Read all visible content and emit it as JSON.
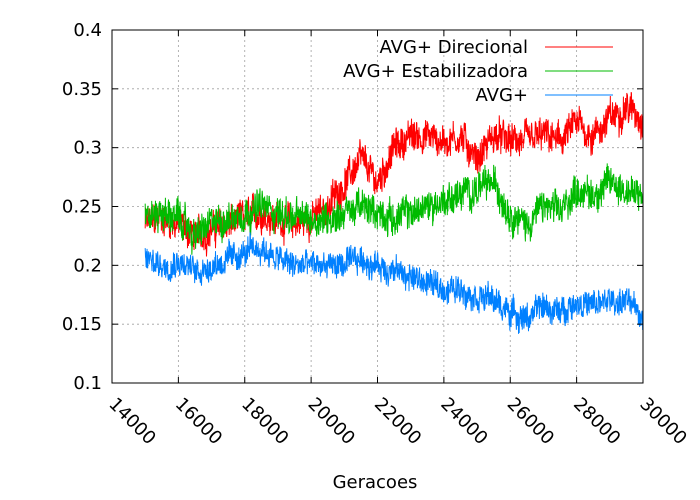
{
  "chart_data": {
    "type": "line",
    "xlabel": "Geracoes",
    "ylabel": "",
    "xlim": [
      14000,
      30000
    ],
    "ylim": [
      0.1,
      0.4
    ],
    "xticks": [
      "14000",
      "16000",
      "18000",
      "20000",
      "22000",
      "24000",
      "26000",
      "28000",
      "30000"
    ],
    "yticks": [
      "0.1",
      "0.15",
      "0.2",
      "0.25",
      "0.3",
      "0.35",
      "0.4"
    ],
    "grid": true,
    "legend_position": "top-right",
    "series": [
      {
        "name": "AVG+ Direcional",
        "color": "#ff0000",
        "noise": 0.012,
        "x": [
          15000,
          15500,
          16000,
          16500,
          17000,
          17500,
          18000,
          18500,
          19000,
          19500,
          20000,
          20500,
          21000,
          21500,
          22000,
          22500,
          23000,
          23500,
          24000,
          24500,
          25000,
          25500,
          26000,
          26500,
          27000,
          27500,
          28000,
          28500,
          29000,
          29500,
          30000
        ],
        "y": [
          0.235,
          0.24,
          0.235,
          0.225,
          0.23,
          0.235,
          0.24,
          0.245,
          0.24,
          0.235,
          0.24,
          0.25,
          0.27,
          0.29,
          0.27,
          0.3,
          0.31,
          0.31,
          0.305,
          0.31,
          0.29,
          0.31,
          0.305,
          0.305,
          0.31,
          0.305,
          0.32,
          0.31,
          0.325,
          0.335,
          0.325
        ]
      },
      {
        "name": "AVG+ Estabilizadora",
        "color": "#00bb00",
        "noise": 0.012,
        "x": [
          15000,
          15500,
          16000,
          16500,
          17000,
          17500,
          18000,
          18500,
          19000,
          19500,
          20000,
          20500,
          21000,
          21500,
          22000,
          22500,
          23000,
          23500,
          24000,
          24500,
          25000,
          25500,
          26000,
          26500,
          27000,
          27500,
          28000,
          28500,
          29000,
          29500,
          30000
        ],
        "y": [
          0.24,
          0.245,
          0.24,
          0.225,
          0.235,
          0.24,
          0.245,
          0.25,
          0.245,
          0.24,
          0.24,
          0.24,
          0.245,
          0.25,
          0.245,
          0.24,
          0.245,
          0.25,
          0.255,
          0.26,
          0.265,
          0.27,
          0.245,
          0.235,
          0.25,
          0.245,
          0.265,
          0.26,
          0.27,
          0.265,
          0.255
        ]
      },
      {
        "name": "AVG+",
        "color": "#0080ff",
        "noise": 0.01,
        "x": [
          15000,
          15500,
          16000,
          16500,
          17000,
          17500,
          18000,
          18500,
          19000,
          19500,
          20000,
          20500,
          21000,
          21500,
          22000,
          22500,
          23000,
          23500,
          24000,
          24500,
          25000,
          25500,
          26000,
          26500,
          27000,
          27500,
          28000,
          28500,
          29000,
          29500,
          30000
        ],
        "y": [
          0.205,
          0.2,
          0.205,
          0.195,
          0.2,
          0.205,
          0.21,
          0.215,
          0.205,
          0.2,
          0.2,
          0.2,
          0.2,
          0.205,
          0.2,
          0.195,
          0.19,
          0.185,
          0.18,
          0.18,
          0.175,
          0.17,
          0.16,
          0.155,
          0.165,
          0.16,
          0.17,
          0.165,
          0.17,
          0.17,
          0.155
        ]
      }
    ]
  }
}
